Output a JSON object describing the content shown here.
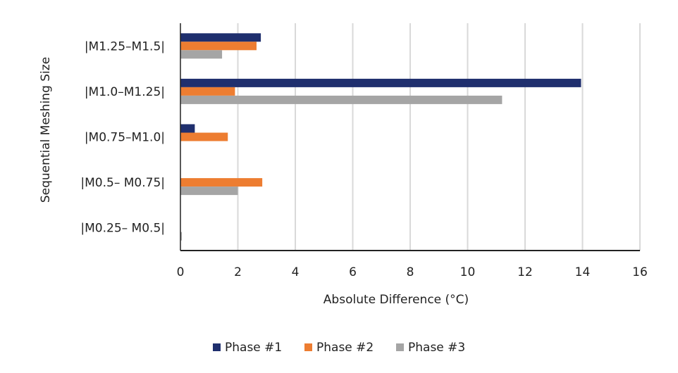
{
  "chart_data": {
    "type": "bar",
    "orientation": "horizontal",
    "title": "",
    "xlabel": "Absolute Difference (°C)",
    "ylabel": "Sequential Meshing Size",
    "xlim": [
      0,
      16
    ],
    "xticks": [
      0,
      2,
      4,
      6,
      8,
      10,
      12,
      14,
      16
    ],
    "grid": "vertical",
    "legend_position": "bottom",
    "categories": [
      "|M0.25– M0.5|",
      "|M0.5– M0.75|",
      "|M0.75–M1.0|",
      "|M1.0–M1.25|",
      "|M1.25–M1.5|"
    ],
    "series": [
      {
        "name": "Phase #1",
        "color": "#1f2f6e",
        "values": [
          0.0,
          0.0,
          0.5,
          13.95,
          2.8
        ]
      },
      {
        "name": "Phase #2",
        "color": "#ed7d31",
        "values": [
          0.0,
          2.85,
          1.65,
          1.9,
          2.65
        ]
      },
      {
        "name": "Phase #3",
        "color": "#a5a5a5",
        "values": [
          0.05,
          2.0,
          0.0,
          11.2,
          1.45
        ]
      }
    ]
  }
}
